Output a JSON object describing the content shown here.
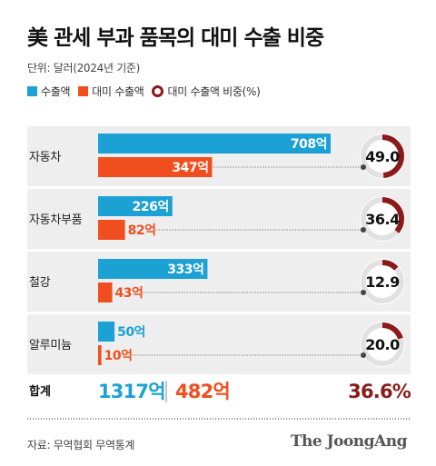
{
  "title": "美 관세 부과 품목의 대미 수출 비중",
  "unit_note": "단위: 달러(2024년 기준)",
  "legend": {
    "export_total": "수출액",
    "export_us": "대미 수출액",
    "share": "대미 수출액 비중(%)"
  },
  "colors": {
    "export_total": "#1ba1d4",
    "export_us": "#f04e1f",
    "share": "#8b1a1a",
    "ring_bg": "#e1e1e1",
    "row_bg": "#eeeeee"
  },
  "chart_data": {
    "type": "bar",
    "categories": [
      "자동차",
      "자동차부품",
      "철강",
      "알루미늄"
    ],
    "series": [
      {
        "name": "수출액",
        "values": [
          708,
          226,
          333,
          50
        ],
        "labels": [
          "708억",
          "226억",
          "333억",
          "50억"
        ]
      },
      {
        "name": "대미 수출액",
        "values": [
          347,
          82,
          43,
          10
        ],
        "labels": [
          "347억",
          "82억",
          "43억",
          "10억"
        ]
      },
      {
        "name": "대미 수출액 비중(%)",
        "values": [
          49.0,
          36.4,
          12.9,
          20.0
        ],
        "labels": [
          "49.0",
          "36.4",
          "12.9",
          "20.0"
        ]
      }
    ],
    "total": {
      "label": "합계",
      "export_total": "1317억",
      "export_us": "482억",
      "share": "36.6%"
    }
  },
  "source": "자료: 무역협회 무역통계",
  "logo": "The JoongAng"
}
